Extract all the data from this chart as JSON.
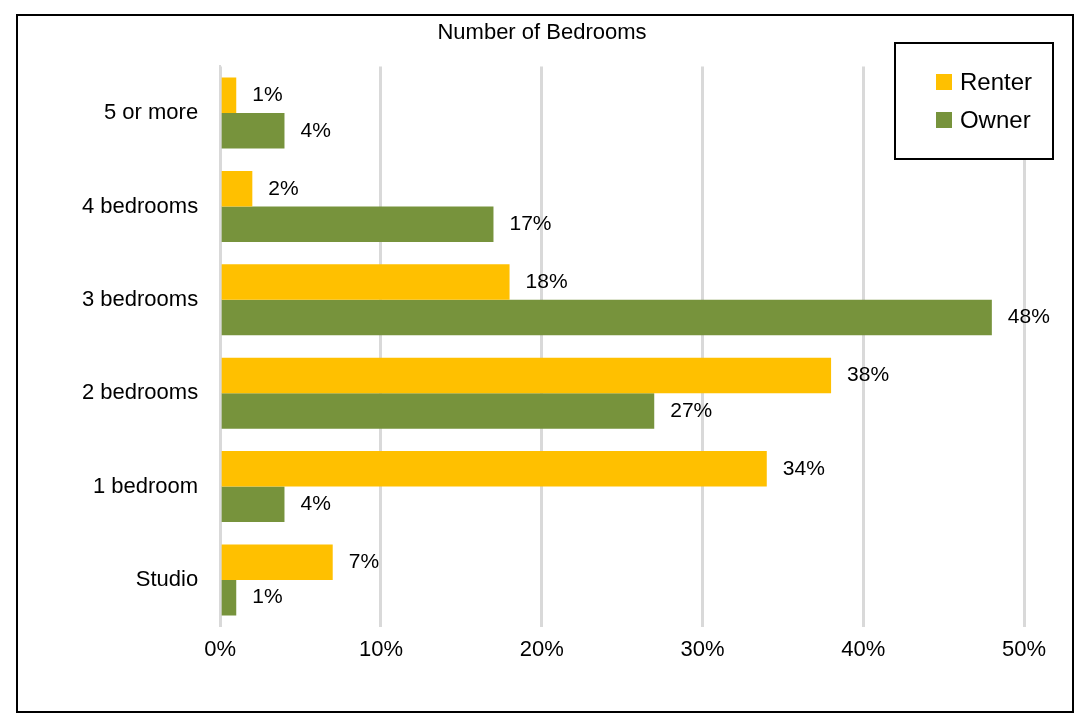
{
  "chart_data": {
    "type": "bar",
    "orientation": "horizontal",
    "title": "Number of Bedrooms",
    "categories": [
      "5 or more",
      "4 bedrooms",
      "3 bedrooms",
      "2 bedrooms",
      "1 bedroom",
      "Studio"
    ],
    "series": [
      {
        "name": "Renter",
        "color": "#ffc000",
        "values": [
          1,
          2,
          18,
          38,
          34,
          7
        ],
        "value_labels": [
          "1%",
          "2%",
          "18%",
          "38%",
          "34%",
          "7%"
        ]
      },
      {
        "name": "Owner",
        "color": "#77933c",
        "values": [
          4,
          17,
          48,
          27,
          4,
          1
        ],
        "value_labels": [
          "4%",
          "17%",
          "48%",
          "27%",
          "4%",
          "1%"
        ]
      }
    ],
    "xlim": [
      0,
      50
    ],
    "xticks": [
      {
        "value": 0,
        "label": "0%"
      },
      {
        "value": 10,
        "label": "10%"
      },
      {
        "value": 20,
        "label": "20%"
      },
      {
        "value": 30,
        "label": "30%"
      },
      {
        "value": 40,
        "label": "40%"
      },
      {
        "value": 50,
        "label": "50%"
      }
    ],
    "grid": "x",
    "legend": "top right"
  }
}
